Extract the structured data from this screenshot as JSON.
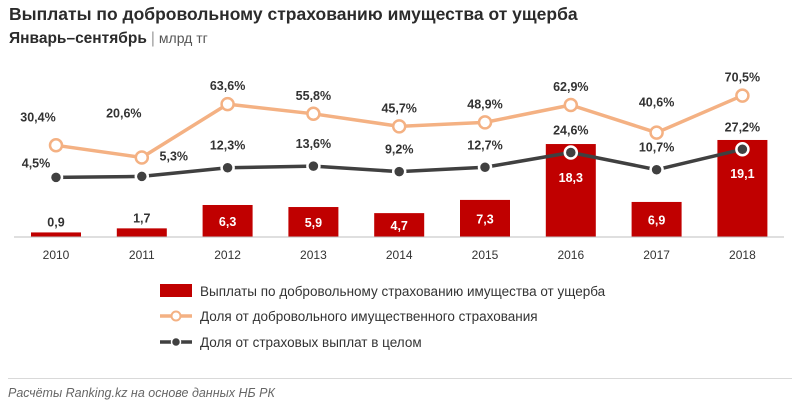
{
  "title": "Выплаты по добровольному страхованию имущества от ущерба",
  "subtitle": {
    "period": "Январь–сентябрь",
    "separator": "|",
    "unit": "млрд тг"
  },
  "source": "Расчёты Ranking.kz на основе данных НБ РК",
  "colors": {
    "bars": "#c00000",
    "share_voluntary": "#f4b183",
    "share_total": "#404040",
    "marker_fill": "#ffffff"
  },
  "chart_data": {
    "type": "bar",
    "categories": [
      "2010",
      "2011",
      "2012",
      "2013",
      "2014",
      "2015",
      "2016",
      "2017",
      "2018"
    ],
    "series": [
      {
        "name": "Выплаты по добровольному страхованию имущества от ущерба",
        "type": "bar",
        "values": [
          0.9,
          1.7,
          6.3,
          5.9,
          4.7,
          7.3,
          18.3,
          6.9,
          19.1
        ],
        "labels": [
          "0,9",
          "1,7",
          "6,3",
          "5,9",
          "4,7",
          "7,3",
          "18,3",
          "6,9",
          "19,1"
        ]
      },
      {
        "name": "Доля от добровольного имущественного страхования",
        "type": "line",
        "values": [
          30.4,
          20.6,
          63.6,
          55.8,
          45.7,
          48.9,
          62.9,
          40.6,
          70.5
        ],
        "labels": [
          "30,4%",
          "20,6%",
          "63,6%",
          "55,8%",
          "45,7%",
          "48,9%",
          "62,9%",
          "40,6%",
          "70,5%"
        ]
      },
      {
        "name": "Доля от страховых выплат в целом",
        "type": "line",
        "values": [
          4.5,
          5.3,
          12.3,
          13.6,
          9.2,
          12.7,
          24.6,
          10.7,
          27.2
        ],
        "labels": [
          "4,5%",
          "5,3%",
          "12,3%",
          "13,6%",
          "9,2%",
          "12,7%",
          "24,6%",
          "10,7%",
          "27,2%"
        ]
      }
    ],
    "legend_position": "bottom",
    "grid": false
  }
}
